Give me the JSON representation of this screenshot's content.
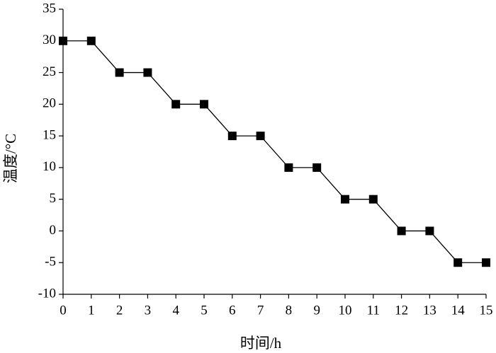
{
  "chart_data": {
    "type": "line",
    "xlabel": "时间/h",
    "ylabel": "温度/°C",
    "x": [
      0,
      1,
      2,
      3,
      4,
      5,
      6,
      7,
      8,
      9,
      10,
      11,
      12,
      13,
      14,
      15
    ],
    "series": [
      {
        "name": "温度",
        "color": "#000000",
        "values": [
          30,
          30,
          25,
          25,
          20,
          20,
          15,
          15,
          10,
          10,
          5,
          5,
          0,
          0,
          -5,
          -5
        ]
      }
    ],
    "xlim": [
      0,
      15
    ],
    "xticks": [
      0,
      1,
      2,
      3,
      4,
      5,
      6,
      7,
      8,
      9,
      10,
      11,
      12,
      13,
      14,
      15
    ],
    "ylim": [
      -10,
      35
    ],
    "yticks": [
      -10,
      -5,
      0,
      5,
      10,
      15,
      20,
      25,
      30,
      35
    ],
    "grid": false,
    "marker": "square"
  }
}
